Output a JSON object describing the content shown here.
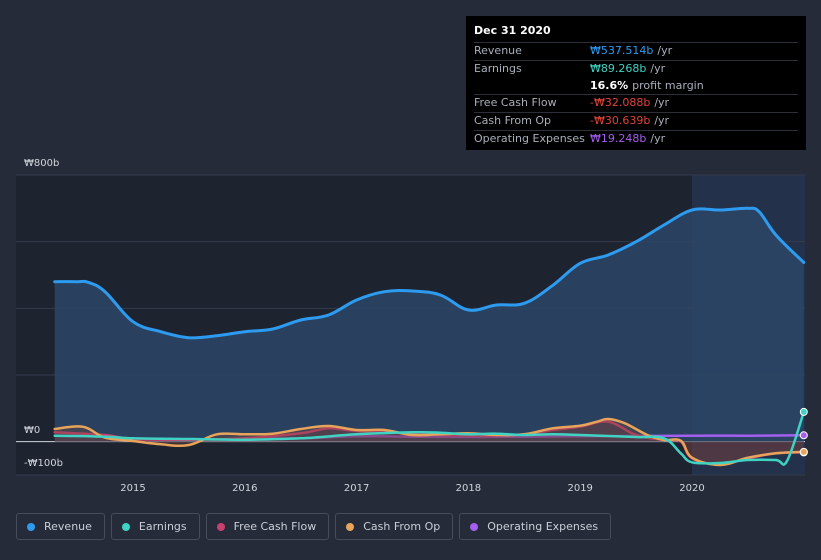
{
  "chart_data": {
    "type": "area",
    "currency_symbol": "₩",
    "y_axis": {
      "max_label": "₩800b",
      "zero_label": "₩0",
      "min_label": "-₩100b",
      "ylim": [
        -100,
        800
      ]
    },
    "x_ticks": [
      "2015",
      "2016",
      "2017",
      "2018",
      "2019",
      "2020"
    ],
    "x_tick_values": [
      2015,
      2016,
      2017,
      2018,
      2019,
      2020
    ],
    "xlim": [
      2014.25,
      2021.0
    ],
    "highlight_from": 2020.0,
    "series": [
      {
        "name": "Revenue",
        "key": "revenue",
        "color": "#2d9bf0",
        "fill": "#2b4766",
        "filled": true,
        "x": [
          2014.3,
          2014.5,
          2014.6,
          2014.75,
          2015.0,
          2015.25,
          2015.5,
          2015.75,
          2016.0,
          2016.25,
          2016.5,
          2016.75,
          2017.0,
          2017.25,
          2017.5,
          2017.75,
          2018.0,
          2018.25,
          2018.5,
          2018.75,
          2019.0,
          2019.25,
          2019.5,
          2019.75,
          2020.0,
          2020.25,
          2020.5,
          2020.6,
          2020.75,
          2021.0
        ],
        "values": [
          480,
          480,
          478,
          450,
          360,
          330,
          312,
          318,
          330,
          338,
          365,
          380,
          425,
          450,
          452,
          440,
          395,
          410,
          415,
          468,
          535,
          560,
          600,
          650,
          695,
          695,
          700,
          690,
          620,
          537.5
        ]
      },
      {
        "name": "Earnings",
        "key": "earnings",
        "color": "#3ed3c3",
        "fill": "none",
        "filled": false,
        "x": [
          2014.3,
          2014.75,
          2015.0,
          2015.5,
          2016.0,
          2016.5,
          2017.0,
          2017.5,
          2017.75,
          2018.0,
          2018.25,
          2018.5,
          2018.75,
          2019.0,
          2019.5,
          2019.75,
          2019.9,
          2020.0,
          2020.25,
          2020.5,
          2020.75,
          2020.85,
          2021.0
        ],
        "values": [
          18,
          15,
          10,
          8,
          6,
          10,
          22,
          28,
          27,
          22,
          24,
          20,
          22,
          20,
          14,
          10,
          -35,
          -62,
          -64,
          -55,
          -55,
          -58,
          89.3
        ]
      },
      {
        "name": "Free Cash Flow",
        "key": "fcf",
        "color": "#c7416f",
        "fill": "none",
        "filled": false,
        "x": [
          2014.3,
          2014.75,
          2015.0,
          2015.5,
          2016.0,
          2016.5,
          2016.75,
          2017.0,
          2017.5,
          2018.0,
          2018.5,
          2018.75,
          2019.0,
          2019.25,
          2019.5,
          2019.75,
          2019.9,
          2020.0,
          2020.25,
          2020.5,
          2020.75,
          2021.0
        ],
        "values": [
          28,
          20,
          8,
          6,
          10,
          25,
          40,
          32,
          25,
          18,
          22,
          35,
          45,
          60,
          20,
          5,
          0,
          -50,
          -68,
          -50,
          -35,
          -32.1
        ]
      },
      {
        "name": "Cash From Op",
        "key": "cfo",
        "color": "#e8a45b",
        "fill": "none",
        "filled": false,
        "x": [
          2014.3,
          2014.55,
          2014.75,
          2015.0,
          2015.25,
          2015.5,
          2015.75,
          2016.0,
          2016.25,
          2016.5,
          2016.75,
          2017.0,
          2017.25,
          2017.5,
          2017.75,
          2018.0,
          2018.25,
          2018.5,
          2018.75,
          2019.0,
          2019.15,
          2019.25,
          2019.4,
          2019.6,
          2019.75,
          2019.9,
          2020.0,
          2020.25,
          2020.5,
          2020.75,
          2021.0
        ],
        "values": [
          38,
          45,
          12,
          2,
          -8,
          -10,
          22,
          22,
          24,
          38,
          47,
          35,
          35,
          20,
          22,
          25,
          20,
          22,
          40,
          48,
          60,
          68,
          55,
          20,
          5,
          3,
          -48,
          -70,
          -48,
          -35,
          -30.6
        ]
      },
      {
        "name": "Operating Expenses",
        "key": "opex",
        "color": "#a55ff0",
        "fill": "none",
        "filled": false,
        "x": [
          2016.0,
          2016.5,
          2017.0,
          2017.5,
          2018.0,
          2018.5,
          2019.0,
          2019.5,
          2020.0,
          2020.5,
          2021.0
        ],
        "values": [
          8,
          10,
          16,
          15,
          14,
          15,
          16,
          17,
          18,
          18,
          19.2
        ]
      }
    ]
  },
  "tooltip": {
    "date": "Dec 31 2020",
    "rows": [
      {
        "label": "Revenue",
        "value": "₩537.514b",
        "unit": "/yr",
        "color": "#2d9bf0"
      },
      {
        "label": "Earnings",
        "value": "₩89.268b",
        "unit": "/yr",
        "color": "#3ed3c3"
      },
      {
        "label": "",
        "value": "16.6%",
        "unit": "profit margin",
        "color": "#ffffff"
      },
      {
        "label": "Free Cash Flow",
        "value": "-₩32.088b",
        "unit": "/yr",
        "color": "#e0443a"
      },
      {
        "label": "Cash From Op",
        "value": "-₩30.639b",
        "unit": "/yr",
        "color": "#e0443a"
      },
      {
        "label": "Operating Expenses",
        "value": "₩19.248b",
        "unit": "/yr",
        "color": "#a55ff0"
      }
    ]
  },
  "legend": [
    {
      "label": "Revenue",
      "color": "#2d9bf0"
    },
    {
      "label": "Earnings",
      "color": "#3ed3c3"
    },
    {
      "label": "Free Cash Flow",
      "color": "#c7416f"
    },
    {
      "label": "Cash From Op",
      "color": "#e8a45b"
    },
    {
      "label": "Operating Expenses",
      "color": "#a55ff0"
    }
  ]
}
